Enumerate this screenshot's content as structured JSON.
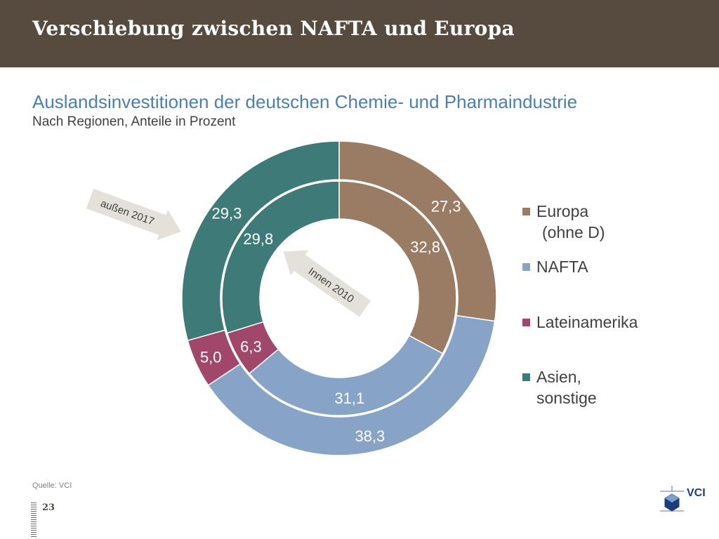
{
  "header": {
    "title": "Verschiebung zwischen NAFTA und Europa"
  },
  "subtitle": "Auslandsinvestitionen der deutschen Chemie- und Pharmaindustrie",
  "subtitle2": "Nach Regionen, Anteile in Prozent",
  "chart_data": {
    "type": "donut",
    "title": "Auslandsinvestitionen der deutschen Chemie- und Pharmaindustrie",
    "categories": [
      "Europa (ohne D)",
      "NAFTA",
      "Lateinamerika",
      "Asien, sonstige"
    ],
    "series": [
      {
        "name": "außen 2017",
        "ring": "outer",
        "values": [
          27.3,
          38.3,
          5.0,
          29.3
        ],
        "labels": [
          "27,3",
          "38,3",
          "5,0",
          "29,3"
        ]
      },
      {
        "name": "Innen 2010",
        "ring": "inner",
        "values": [
          32.8,
          31.1,
          6.3,
          29.8
        ],
        "labels": [
          "32,8",
          "31,1",
          "6,3",
          "29,8"
        ]
      }
    ],
    "colors": [
      "#9a7b63",
      "#87a3c6",
      "#a0476b",
      "#3d7a78"
    ],
    "legend_position": "right"
  },
  "legend": [
    {
      "label": "Europa",
      "sub": "(ohne D)",
      "color": "#9a7b63"
    },
    {
      "label": "NAFTA",
      "sub": "",
      "color": "#87a3c6"
    },
    {
      "label": "Lateinamerika",
      "sub": "",
      "color": "#a0476b"
    },
    {
      "label": "Asien,",
      "sub": "sonstige",
      "color": "#3d7a78"
    }
  ],
  "arrows": {
    "outer": "außen 2017",
    "inner": "Innen 2010"
  },
  "footer": {
    "source": "Quelle: VCI",
    "page": "23",
    "logo_text": "VCI"
  }
}
